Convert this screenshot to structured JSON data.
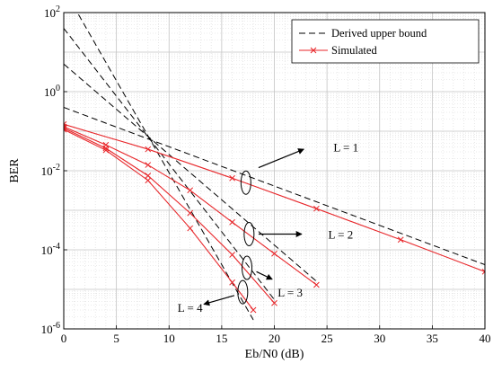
{
  "chart_data": {
    "type": "line",
    "title": "",
    "xlabel": "Eb/N0 (dB)",
    "ylabel": "BER",
    "xlim": [
      0,
      40
    ],
    "ylim": [
      1e-06,
      100
    ],
    "yscale": "log",
    "grid": true,
    "minor_grid": true,
    "legend_position": "top-right",
    "x_ticks": [
      0,
      5,
      10,
      15,
      20,
      25,
      30,
      35,
      40
    ],
    "y_ticks": [
      {
        "value": 100,
        "base": "10",
        "exp": "2"
      },
      {
        "value": 1,
        "base": "10",
        "exp": "0"
      },
      {
        "value": 0.01,
        "base": "10",
        "exp": "-2"
      },
      {
        "value": 0.0001,
        "base": "10",
        "exp": "-4"
      },
      {
        "value": 1e-06,
        "base": "10",
        "exp": "-6"
      }
    ],
    "legend": [
      {
        "label": "Derived upper bound",
        "style": "dashed",
        "color": "#000000"
      },
      {
        "label": "Simulated",
        "style": "solid-x",
        "color": "#e8262a"
      }
    ],
    "series": [
      {
        "kind": "bound",
        "L": 1,
        "color": "#000000",
        "x": [
          0,
          40
        ],
        "y": [
          0.4,
          4.2e-05
        ]
      },
      {
        "kind": "bound",
        "L": 2,
        "color": "#000000",
        "x": [
          0,
          24
        ],
        "y": [
          5.0,
          1.6e-05
        ]
      },
      {
        "kind": "bound",
        "L": 3,
        "color": "#000000",
        "x": [
          0,
          20
        ],
        "y": [
          40.0,
          5.5e-06
        ]
      },
      {
        "kind": "bound",
        "L": 4,
        "color": "#000000",
        "x": [
          0,
          18
        ],
        "y": [
          400.0,
          1.7e-06
        ]
      },
      {
        "kind": "simulated",
        "L": 1,
        "color": "#e8262a",
        "x": [
          0,
          8,
          16,
          24,
          32,
          40
        ],
        "y": [
          0.15,
          0.035,
          0.0065,
          0.0011,
          0.00018,
          2.8e-05
        ]
      },
      {
        "kind": "simulated",
        "L": 2,
        "color": "#e8262a",
        "x": [
          0,
          4,
          8,
          12,
          16,
          20,
          24
        ],
        "y": [
          0.13,
          0.045,
          0.014,
          0.0032,
          0.0005,
          8e-05,
          1.3e-05
        ]
      },
      {
        "kind": "simulated",
        "L": 3,
        "color": "#e8262a",
        "x": [
          0,
          4,
          8,
          12,
          16,
          20
        ],
        "y": [
          0.12,
          0.037,
          0.0075,
          0.00085,
          7.5e-05,
          4.5e-06
        ]
      },
      {
        "kind": "simulated",
        "L": 4,
        "color": "#e8262a",
        "x": [
          0,
          4,
          8,
          12,
          16,
          18
        ],
        "y": [
          0.11,
          0.033,
          0.0057,
          0.00035,
          1.5e-05,
          3e-06
        ]
      }
    ],
    "annotations": [
      {
        "label": "L = 1",
        "ellipse_at": [
          17.3,
          0.005
        ],
        "arrow_from": [
          18.5,
          0.012
        ],
        "arrow_to": [
          22.8,
          0.035
        ],
        "text_at": [
          26.8,
          0.04
        ]
      },
      {
        "label": "L = 2",
        "ellipse_at": [
          17.6,
          0.00025
        ],
        "arrow_from": [
          18.5,
          0.00025
        ],
        "arrow_to": [
          22.6,
          0.00025
        ],
        "text_at": [
          26.3,
          0.00025
        ]
      },
      {
        "label": "L = 3",
        "ellipse_at": [
          17.4,
          3.5e-05
        ],
        "arrow_from": [
          18.3,
          2.8e-05
        ],
        "arrow_to": [
          19.8,
          1.8e-05
        ],
        "text_at": [
          21.5,
          8.5e-06
        ]
      },
      {
        "label": "L = 4",
        "ellipse_at": [
          17.0,
          8.5e-06
        ],
        "arrow_from": [
          16.2,
          7e-06
        ],
        "arrow_to": [
          13.3,
          4.2e-06
        ],
        "text_at": [
          12.0,
          3.5e-06
        ]
      }
    ]
  }
}
